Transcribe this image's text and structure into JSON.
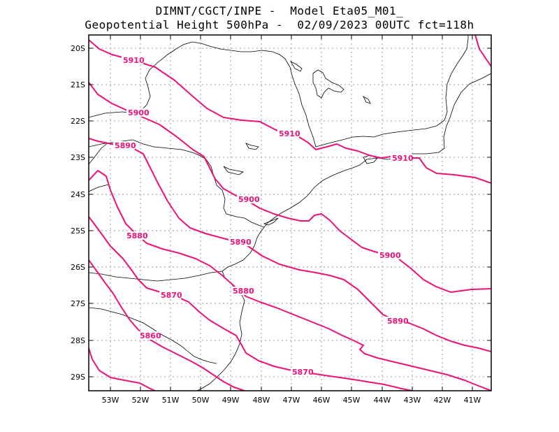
{
  "title": {
    "line1": "DIMNT/CGCT/INPE -  Model Eta05_M01_",
    "line2": "Geopotential Height 500hPa -  02/09/2023 00UTC fct=118h"
  },
  "axes": {
    "lat_labels": [
      "20S",
      "21S",
      "22S",
      "23S",
      "24S",
      "25S",
      "26S",
      "27S",
      "28S",
      "29S"
    ],
    "lon_labels": [
      "53W",
      "52W",
      "51W",
      "50W",
      "49W",
      "48W",
      "47W",
      "46W",
      "45W",
      "44W",
      "43W",
      "42W",
      "41W"
    ]
  },
  "contour_labels": [
    "5910",
    "5900",
    "5890",
    "5910",
    "5910",
    "5900",
    "5880",
    "5890",
    "5900",
    "5880",
    "5870",
    "5890",
    "5860",
    "5870"
  ],
  "colors": {
    "contour": "#ee1177",
    "border": "#000000",
    "grid": "#999999"
  }
}
